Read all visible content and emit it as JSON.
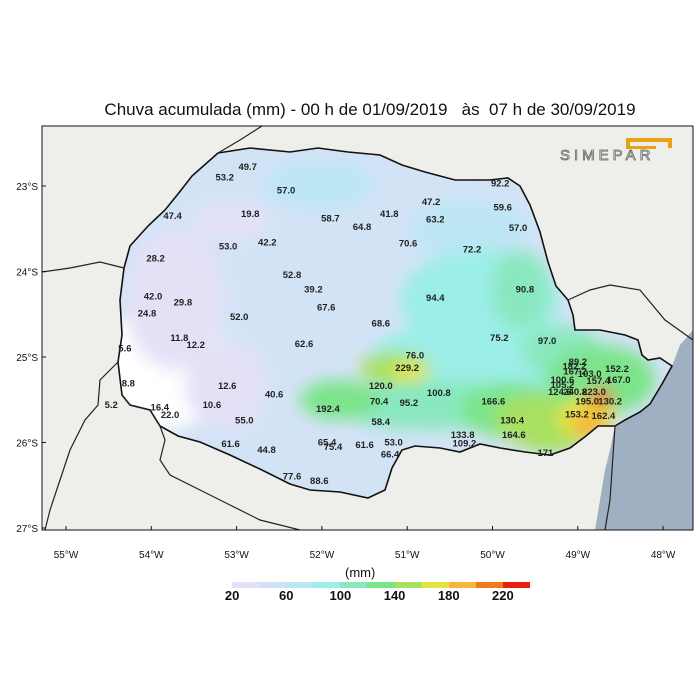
{
  "title": "Chuva acumulada (mm) - 00 h de 01/09/2019   às  07 h de 30/09/2019",
  "logo_text": "SIMEPAR",
  "lat_labels": [
    "23°S",
    "24°S",
    "25°S",
    "26°S",
    "27°S"
  ],
  "lon_labels": [
    "55°W",
    "54°W",
    "53°W",
    "52°W",
    "51°W",
    "50°W",
    "49°W",
    "48°W"
  ],
  "legend": {
    "unit": "(mm)",
    "labels": [
      "20",
      "60",
      "100",
      "140",
      "180",
      "220"
    ],
    "colors": [
      "#ffffff",
      "#e4e1f7",
      "#cfe2f7",
      "#bde6f4",
      "#9ceee8",
      "#8ae8bf",
      "#7be48a",
      "#a8e060",
      "#e6e440",
      "#f6b638",
      "#f07a20",
      "#e81e10"
    ]
  },
  "stations": [
    {
      "v": "49.7",
      "lon": -52.87,
      "lat": -22.78
    },
    {
      "v": "53.2",
      "lon": -53.14,
      "lat": -22.9
    },
    {
      "v": "57.0",
      "lon": -52.42,
      "lat": -23.05
    },
    {
      "v": "92.2",
      "lon": -49.91,
      "lat": -22.97
    },
    {
      "v": "47.4",
      "lon": -53.75,
      "lat": -23.35
    },
    {
      "v": "19.8",
      "lon": -52.84,
      "lat": -23.33
    },
    {
      "v": "58.7",
      "lon": -51.9,
      "lat": -23.38
    },
    {
      "v": "64.8",
      "lon": -51.53,
      "lat": -23.48
    },
    {
      "v": "41.8",
      "lon": -51.21,
      "lat": -23.33
    },
    {
      "v": "47.2",
      "lon": -50.72,
      "lat": -23.19
    },
    {
      "v": "63.2",
      "lon": -50.67,
      "lat": -23.39
    },
    {
      "v": "59.6",
      "lon": -49.88,
      "lat": -23.25
    },
    {
      "v": "57.0",
      "lon": -49.7,
      "lat": -23.49
    },
    {
      "v": "42.2",
      "lon": -52.64,
      "lat": -23.66
    },
    {
      "v": "53.0",
      "lon": -53.1,
      "lat": -23.71
    },
    {
      "v": "70.6",
      "lon": -50.99,
      "lat": -23.67
    },
    {
      "v": "72.2",
      "lon": -50.24,
      "lat": -23.74
    },
    {
      "v": "28.2",
      "lon": -53.95,
      "lat": -23.85
    },
    {
      "v": "52.8",
      "lon": -52.35,
      "lat": -24.04
    },
    {
      "v": "39.2",
      "lon": -52.1,
      "lat": -24.21
    },
    {
      "v": "90.8",
      "lon": -49.62,
      "lat": -24.21
    },
    {
      "v": "42.0",
      "lon": -53.98,
      "lat": -24.29
    },
    {
      "v": "29.8",
      "lon": -53.63,
      "lat": -24.36
    },
    {
      "v": "94.4",
      "lon": -50.67,
      "lat": -24.31
    },
    {
      "v": "67.6",
      "lon": -51.95,
      "lat": -24.42
    },
    {
      "v": "24.8",
      "lon": -54.05,
      "lat": -24.49
    },
    {
      "v": "52.0",
      "lon": -52.97,
      "lat": -24.53
    },
    {
      "v": "68.6",
      "lon": -51.31,
      "lat": -24.61
    },
    {
      "v": "11.8",
      "lon": -53.67,
      "lat": -24.78
    },
    {
      "v": "75.2",
      "lon": -49.92,
      "lat": -24.78
    },
    {
      "v": "97.0",
      "lon": -49.36,
      "lat": -24.81
    },
    {
      "v": "12.2",
      "lon": -53.48,
      "lat": -24.86
    },
    {
      "v": "62.6",
      "lon": -52.21,
      "lat": -24.85
    },
    {
      "v": "5.6",
      "lon": -54.31,
      "lat": -24.9
    },
    {
      "v": "76.0",
      "lon": -50.91,
      "lat": -24.98
    },
    {
      "v": "229.2",
      "lon": -51.0,
      "lat": -25.13
    },
    {
      "v": "89.2",
      "lon": -49.0,
      "lat": -25.06
    },
    {
      "v": "182.2",
      "lon": -49.04,
      "lat": -25.11
    },
    {
      "v": "152.2",
      "lon": -48.54,
      "lat": -25.14
    },
    {
      "v": "167.2",
      "lon": -49.03,
      "lat": -25.17
    },
    {
      "v": "103.0",
      "lon": -48.86,
      "lat": -25.2
    },
    {
      "v": "100.6",
      "lon": -49.18,
      "lat": -25.27
    },
    {
      "v": "157.4",
      "lon": -48.76,
      "lat": -25.28
    },
    {
      "v": "167.0",
      "lon": -48.52,
      "lat": -25.27
    },
    {
      "v": "105.2",
      "lon": -49.18,
      "lat": -25.33
    },
    {
      "v": "8.8",
      "lon": -54.27,
      "lat": -25.31
    },
    {
      "v": "12.6",
      "lon": -53.11,
      "lat": -25.34
    },
    {
      "v": "120.0",
      "lon": -51.31,
      "lat": -25.34
    },
    {
      "v": "124.6",
      "lon": -49.21,
      "lat": -25.41
    },
    {
      "v": "240.8",
      "lon": -49.03,
      "lat": -25.41
    },
    {
      "v": "223.0",
      "lon": -48.81,
      "lat": -25.41
    },
    {
      "v": "100.8",
      "lon": -50.63,
      "lat": -25.42
    },
    {
      "v": "40.6",
      "lon": -52.56,
      "lat": -25.44
    },
    {
      "v": "70.4",
      "lon": -51.33,
      "lat": -25.52
    },
    {
      "v": "95.2",
      "lon": -50.98,
      "lat": -25.54
    },
    {
      "v": "166.6",
      "lon": -49.99,
      "lat": -25.52
    },
    {
      "v": "195.0",
      "lon": -48.89,
      "lat": -25.52
    },
    {
      "v": "130.2",
      "lon": -48.62,
      "lat": -25.52
    },
    {
      "v": "5.2",
      "lon": -54.47,
      "lat": -25.56
    },
    {
      "v": "16.4",
      "lon": -53.9,
      "lat": -25.59
    },
    {
      "v": "10.6",
      "lon": -53.29,
      "lat": -25.56
    },
    {
      "v": "192.4",
      "lon": -51.93,
      "lat": -25.61
    },
    {
      "v": "153.2",
      "lon": -49.01,
      "lat": -25.67
    },
    {
      "v": "162.4",
      "lon": -48.7,
      "lat": -25.69
    },
    {
      "v": "22.0",
      "lon": -53.78,
      "lat": -25.68
    },
    {
      "v": "55.0",
      "lon": -52.91,
      "lat": -25.74
    },
    {
      "v": "58.4",
      "lon": -51.31,
      "lat": -25.76
    },
    {
      "v": "130.4",
      "lon": -49.77,
      "lat": -25.74
    },
    {
      "v": "133.8",
      "lon": -50.35,
      "lat": -25.91
    },
    {
      "v": "164.6",
      "lon": -49.75,
      "lat": -25.91
    },
    {
      "v": "61.6",
      "lon": -53.07,
      "lat": -26.02
    },
    {
      "v": "65.4",
      "lon": -51.94,
      "lat": -26.0
    },
    {
      "v": "75.4",
      "lon": -51.87,
      "lat": -26.05
    },
    {
      "v": "61.6",
      "lon": -51.5,
      "lat": -26.03
    },
    {
      "v": "53.0",
      "lon": -51.16,
      "lat": -26.0
    },
    {
      "v": "109.2",
      "lon": -50.33,
      "lat": -26.01
    },
    {
      "v": "44.8",
      "lon": -52.65,
      "lat": -26.09
    },
    {
      "v": "66.4",
      "lon": -51.2,
      "lat": -26.14
    },
    {
      "v": "171",
      "lon": -49.38,
      "lat": -26.12
    },
    {
      "v": "77.6",
      "lon": -52.35,
      "lat": -26.4
    },
    {
      "v": "88.6",
      "lon": -52.03,
      "lat": -26.45
    }
  ]
}
